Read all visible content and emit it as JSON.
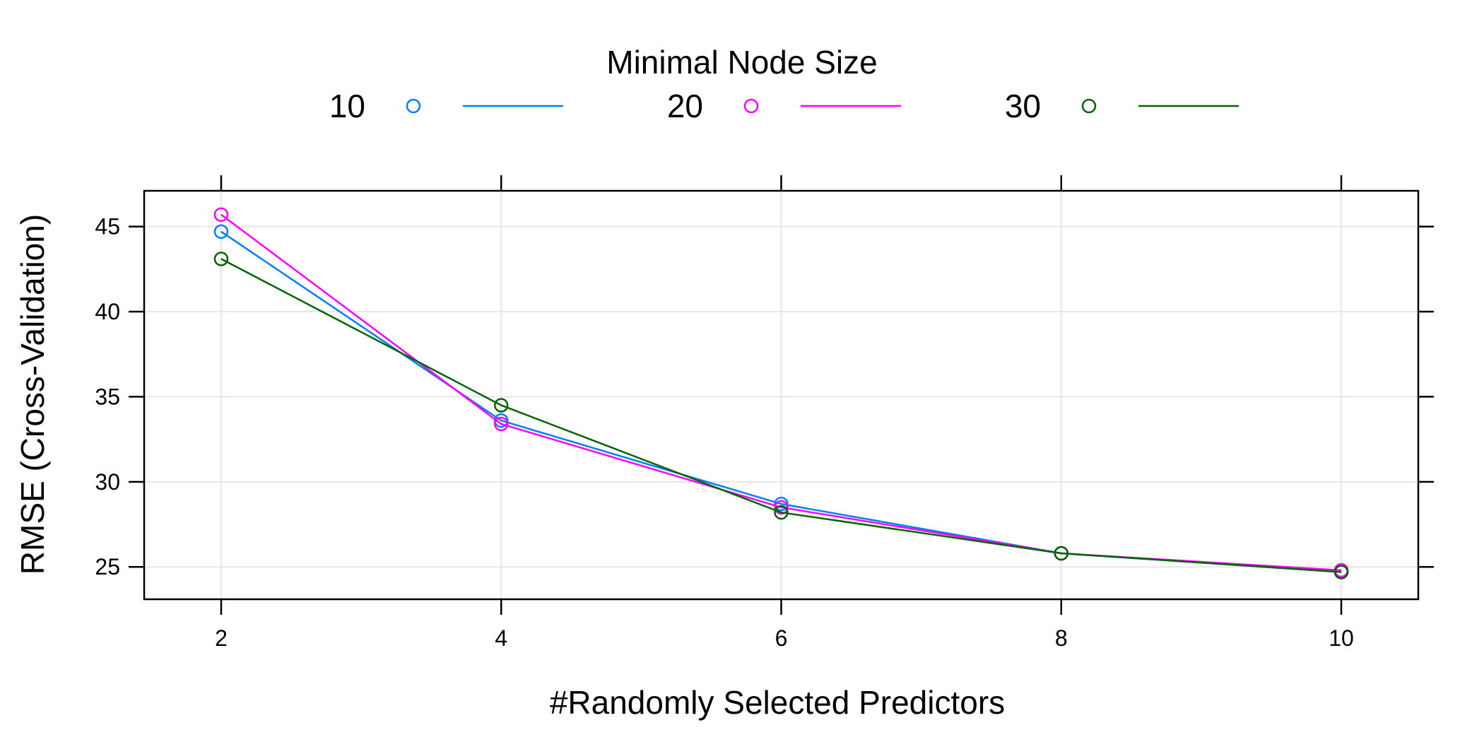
{
  "chart_data": {
    "type": "line",
    "legend": {
      "title": "Minimal Node Size",
      "placement": "top"
    },
    "xlabel": "#Randomly Selected Predictors",
    "ylabel": "RMSE (Cross-Validation)",
    "x": [
      2,
      4,
      6,
      8,
      10
    ],
    "x_ticks": [
      "2",
      "4",
      "6",
      "8",
      "10"
    ],
    "y_ticks": [
      "25",
      "30",
      "35",
      "40",
      "45"
    ],
    "xlim": [
      1.45,
      10.55
    ],
    "ylim": [
      23.1,
      47.1
    ],
    "grid": true,
    "series": [
      {
        "name": "10",
        "color": "#0080FF",
        "values": [
          44.7,
          33.6,
          28.7,
          25.8,
          24.7
        ]
      },
      {
        "name": "20",
        "color": "#FF00FF",
        "values": [
          45.7,
          33.4,
          28.5,
          25.8,
          24.8
        ]
      },
      {
        "name": "30",
        "color": "#006400",
        "values": [
          43.1,
          34.5,
          28.2,
          25.8,
          24.7
        ]
      }
    ],
    "marker": "open-circle",
    "axis_color": "#000000",
    "grid_color": "#e6e6e6"
  }
}
